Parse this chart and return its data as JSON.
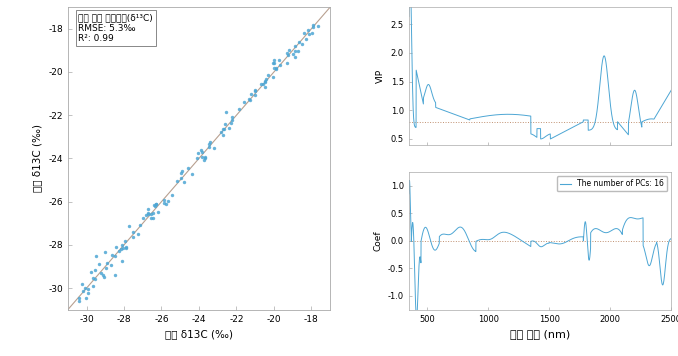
{
  "scatter_title": "토양 탄소 동위원소(δ¹³C)",
  "scatter_rmse": "RMSE: 5.3‰",
  "scatter_r2": "R²: 0.99",
  "scatter_xlabel": "측정 δ13C (‰)",
  "scatter_ylabel": "예측 δ13C (‰)",
  "scatter_xlim": [
    -31,
    -17
  ],
  "scatter_ylim": [
    -31,
    -17
  ],
  "scatter_xticks": [
    -30,
    -28,
    -26,
    -24,
    -22,
    -20,
    -18
  ],
  "scatter_yticks": [
    -30,
    -28,
    -26,
    -24,
    -22,
    -20,
    -18
  ],
  "scatter_color": "#4da6d4",
  "vip_ylabel": "VIP",
  "vip_xlim": [
    350,
    2500
  ],
  "vip_ylim": [
    0.4,
    2.8
  ],
  "vip_yticks": [
    0.5,
    1.0,
    1.5,
    2.0,
    2.5
  ],
  "vip_hline": 0.8,
  "vip_hline_color": "#c09070",
  "coef_ylabel": "Coef",
  "coef_xlim": [
    350,
    2500
  ],
  "coef_ylim": [
    -1.25,
    1.25
  ],
  "coef_yticks": [
    -1.0,
    -0.5,
    0.0,
    0.5,
    1.0
  ],
  "coef_legend": "The number of PCs: 16",
  "coef_hline": 0.0,
  "coef_hline_color": "#c09070",
  "xlabel_right": "파장 범위 (nm)",
  "line_color": "#4da6d4",
  "bg_color": "#ffffff",
  "right_xticks": [
    500,
    1000,
    1500,
    2000,
    2500
  ]
}
